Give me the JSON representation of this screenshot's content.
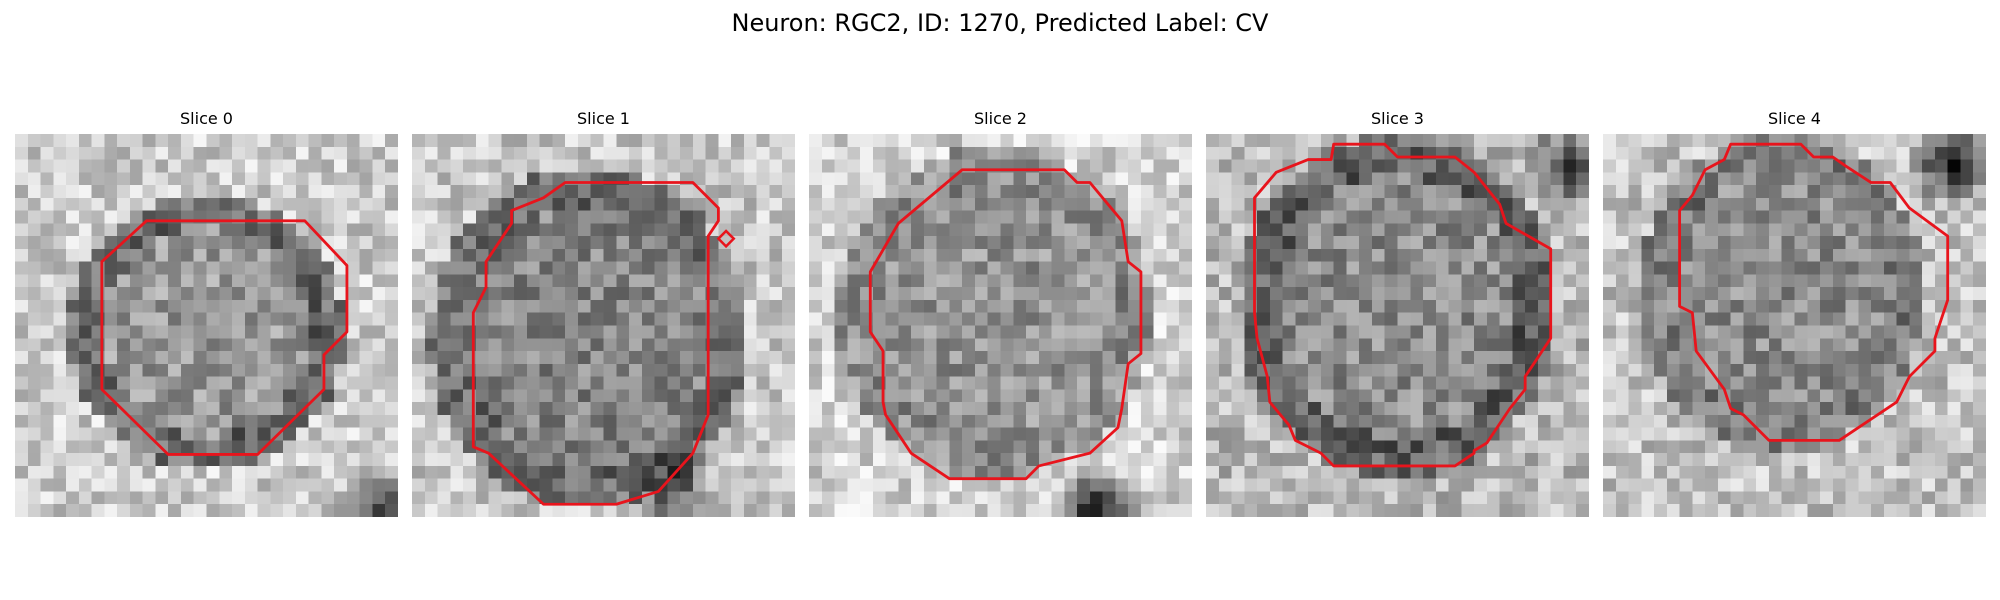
{
  "figure": {
    "title": "Neuron: RGC2, ID: 1270, Predicted Label: CV"
  },
  "colors": {
    "contour": "#e8141c",
    "background": "#ffffff"
  },
  "colormap": "gray",
  "slices": [
    {
      "title": "Slice 0"
    },
    {
      "title": "Slice 1"
    },
    {
      "title": "Slice 2"
    },
    {
      "title": "Slice 3"
    },
    {
      "title": "Slice 4"
    }
  ]
}
